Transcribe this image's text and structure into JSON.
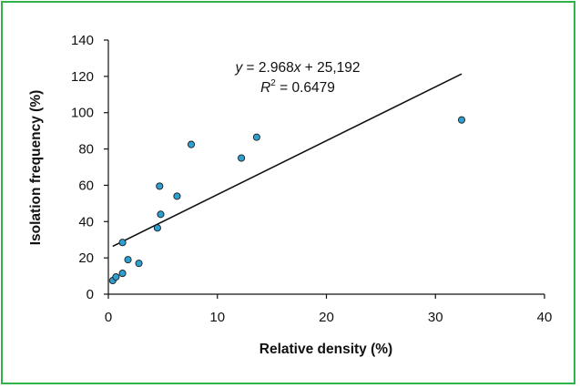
{
  "colors": {
    "frame_border": "#2fb34a",
    "point_fill": "#2f9fd0",
    "point_stroke": "#1a1a1a",
    "line": "#111111"
  },
  "chart_data": {
    "type": "scatter",
    "xlabel": "Relative  density (%)",
    "ylabel": "Isolation frequency (%)",
    "xlim": [
      0,
      40
    ],
    "ylim": [
      0,
      140
    ],
    "x_ticks": [
      "0",
      "10",
      "20",
      "30",
      "40"
    ],
    "y_ticks": [
      "0",
      "20",
      "40",
      "60",
      "80",
      "100",
      "120",
      "140"
    ],
    "grid": false,
    "legend": "none",
    "points": [
      {
        "x": 0.4,
        "y": 7.5
      },
      {
        "x": 0.7,
        "y": 9.5
      },
      {
        "x": 1.3,
        "y": 11.5
      },
      {
        "x": 1.3,
        "y": 28.5
      },
      {
        "x": 1.8,
        "y": 19.0
      },
      {
        "x": 2.8,
        "y": 17.0
      },
      {
        "x": 4.5,
        "y": 36.5
      },
      {
        "x": 4.7,
        "y": 59.5
      },
      {
        "x": 4.8,
        "y": 44.0
      },
      {
        "x": 6.3,
        "y": 54.0
      },
      {
        "x": 7.6,
        "y": 82.5
      },
      {
        "x": 12.2,
        "y": 75.0
      },
      {
        "x": 13.6,
        "y": 86.5
      },
      {
        "x": 32.4,
        "y": 96.0
      }
    ],
    "trendline": {
      "x_start": 0.4,
      "x_end": 32.4,
      "slope": 2.968,
      "intercept": 25.192
    },
    "annotation": {
      "equation": "y = 2.968x + 25,192",
      "r2": "R2 = 0.6479",
      "r2_label": "R",
      "r2_sup": "2",
      "r2_value": " = 0.6479",
      "eq_y": "y",
      "eq_mid": " = 2.968",
      "eq_x": "x",
      "eq_end": " + 25,192"
    }
  }
}
